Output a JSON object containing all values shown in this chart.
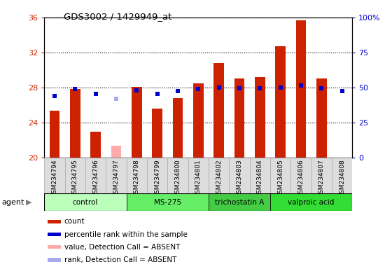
{
  "title": "GDS3002 / 1429949_at",
  "samples": [
    "GSM234794",
    "GSM234795",
    "GSM234796",
    "GSM234797",
    "GSM234798",
    "GSM234799",
    "GSM234800",
    "GSM234801",
    "GSM234802",
    "GSM234803",
    "GSM234804",
    "GSM234805",
    "GSM234806",
    "GSM234807",
    "GSM234808"
  ],
  "count_values": [
    25.3,
    27.8,
    22.9,
    null,
    28.1,
    25.6,
    26.8,
    28.5,
    30.8,
    29.0,
    29.2,
    32.7,
    35.7,
    29.0,
    null
  ],
  "rank_values": [
    27.0,
    27.8,
    27.3,
    26.7,
    27.7,
    27.3,
    27.6,
    27.8,
    28.0,
    27.9,
    27.9,
    28.0,
    28.2,
    27.9,
    27.6
  ],
  "rank_absent_flags": [
    false,
    false,
    false,
    true,
    false,
    false,
    false,
    false,
    false,
    false,
    false,
    false,
    false,
    false,
    false
  ],
  "count_absent": [
    null,
    null,
    null,
    21.3,
    null,
    null,
    null,
    null,
    null,
    null,
    null,
    null,
    null,
    null,
    null
  ],
  "agent_groups": [
    {
      "label": "control",
      "start": 0,
      "end": 4,
      "color": "#bbffbb"
    },
    {
      "label": "MS-275",
      "start": 4,
      "end": 8,
      "color": "#66ee66"
    },
    {
      "label": "trichostatin A",
      "start": 8,
      "end": 11,
      "color": "#44cc44"
    },
    {
      "label": "valproic acid",
      "start": 11,
      "end": 15,
      "color": "#33dd33"
    }
  ],
  "ylim_left": [
    20,
    36
  ],
  "ylim_right": [
    0,
    100
  ],
  "yticks_left": [
    20,
    24,
    28,
    32,
    36
  ],
  "yticks_right": [
    0,
    25,
    50,
    75,
    100
  ],
  "ytick_labels_right": [
    "0",
    "25",
    "50",
    "75",
    "100%"
  ],
  "bar_color": "#cc2200",
  "rank_color": "#0000cc",
  "absent_count_color": "#ffaaaa",
  "absent_rank_color": "#aaaaee",
  "bar_width": 0.5,
  "rank_marker_size": 4,
  "legend_items": [
    {
      "label": "count",
      "color": "#cc2200"
    },
    {
      "label": "percentile rank within the sample",
      "color": "#0000cc"
    },
    {
      "label": "value, Detection Call = ABSENT",
      "color": "#ffaaaa"
    },
    {
      "label": "rank, Detection Call = ABSENT",
      "color": "#aaaaee"
    }
  ]
}
